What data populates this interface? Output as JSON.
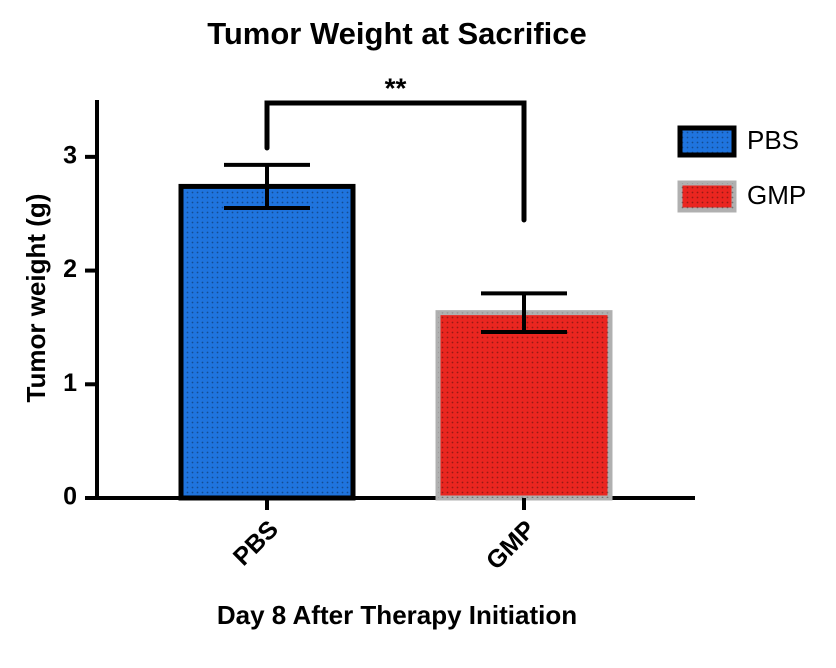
{
  "chart_data": {
    "type": "bar",
    "title": "Tumor Weight at Sacrifice",
    "x_label": "Day 8 After Therapy Initiation",
    "y_label": "Tumor weight (g)",
    "categories": [
      "PBS",
      "GMP"
    ],
    "values": [
      2.74,
      1.63
    ],
    "errors": [
      0.19,
      0.17
    ],
    "colors": [
      "#1f74de",
      "#ea2620"
    ],
    "edge_colors": [
      "#000000",
      "#b0b0b0"
    ],
    "ylim": [
      0,
      3.5
    ],
    "yticks": [
      0,
      1,
      2,
      3
    ],
    "legend": "right",
    "annotation": "**"
  }
}
